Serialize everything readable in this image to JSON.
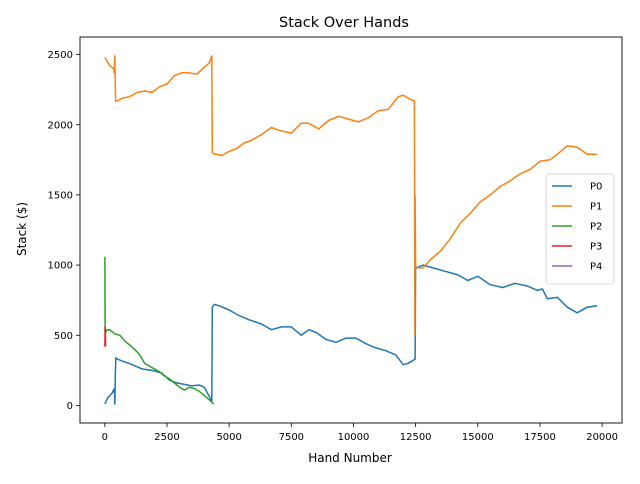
{
  "chart_data": {
    "type": "line",
    "title": "Stack Over Hands",
    "xlabel": "Hand Number",
    "ylabel": "Stack ($)",
    "xlim": [
      -1000,
      20800
    ],
    "ylim": [
      -125,
      2625
    ],
    "xticks": [
      0,
      2500,
      5000,
      7500,
      10000,
      12500,
      15000,
      17500,
      20000
    ],
    "xtick_labels": [
      "0",
      "2500",
      "5000",
      "7500",
      "10000",
      "12500",
      "15000",
      "17500",
      "20000"
    ],
    "yticks": [
      0,
      500,
      1000,
      1500,
      2000,
      2500
    ],
    "ytick_labels": [
      "0",
      "500",
      "1000",
      "1500",
      "2000",
      "2500"
    ],
    "grid": false,
    "legend": "center-right",
    "series": [
      {
        "name": "P0",
        "color": "#1f77b4",
        "x": [
          0,
          100,
          200,
          300,
          380,
          400,
          420,
          440,
          500,
          800,
          1100,
          1500,
          1900,
          2300,
          2600,
          2900,
          3200,
          3500,
          3800,
          4000,
          4300,
          4320,
          4400,
          4600,
          5000,
          5400,
          5800,
          6300,
          6700,
          7100,
          7500,
          7900,
          8200,
          8500,
          8900,
          9300,
          9700,
          10100,
          10500,
          10900,
          11300,
          11700,
          12000,
          12200,
          12480,
          12500,
          12530,
          12800,
          13200,
          13600,
          14200,
          14600,
          15000,
          15500,
          16000,
          16500,
          17000,
          17400,
          17600,
          17800,
          18200,
          18600,
          19000,
          19400,
          19800
        ],
        "y": [
          10,
          50,
          70,
          90,
          120,
          10,
          200,
          340,
          330,
          310,
          290,
          260,
          250,
          230,
          180,
          160,
          150,
          140,
          145,
          130,
          30,
          700,
          720,
          710,
          680,
          640,
          610,
          580,
          540,
          560,
          560,
          500,
          540,
          520,
          470,
          450,
          480,
          480,
          440,
          410,
          390,
          360,
          290,
          300,
          330,
          990,
          980,
          1000,
          980,
          960,
          930,
          890,
          920,
          860,
          840,
          870,
          850,
          820,
          830,
          760,
          770,
          700,
          660,
          700,
          710
        ]
      },
      {
        "name": "P1",
        "color": "#ff7f0e",
        "x": [
          0,
          100,
          200,
          350,
          380,
          400,
          430,
          500,
          700,
          1000,
          1300,
          1600,
          1900,
          2200,
          2500,
          2800,
          3100,
          3400,
          3700,
          4000,
          4200,
          4300,
          4320,
          4400,
          4500,
          4700,
          5000,
          5300,
          5600,
          5900,
          6300,
          6700,
          7000,
          7500,
          7900,
          8200,
          8600,
          9000,
          9400,
          9800,
          10200,
          10600,
          11000,
          11400,
          11800,
          12000,
          12300,
          12450,
          12470,
          12480,
          12500,
          12600,
          12800,
          13100,
          13500,
          13900,
          14300,
          14700,
          15100,
          15500,
          15900,
          16300,
          16700,
          17100,
          17500,
          17900,
          18200,
          18600,
          19000,
          19400,
          19800
        ],
        "y": [
          2480,
          2450,
          2420,
          2400,
          2370,
          2490,
          2170,
          2170,
          2190,
          2200,
          2230,
          2240,
          2230,
          2270,
          2290,
          2350,
          2370,
          2370,
          2360,
          2410,
          2440,
          2490,
          1800,
          1790,
          1790,
          1780,
          1810,
          1830,
          1870,
          1890,
          1930,
          1980,
          1960,
          1940,
          2010,
          2010,
          1970,
          2030,
          2060,
          2040,
          2020,
          2050,
          2100,
          2110,
          2200,
          2210,
          2180,
          2170,
          500,
          1490,
          990,
          980,
          980,
          1040,
          1100,
          1190,
          1300,
          1370,
          1450,
          1500,
          1560,
          1600,
          1650,
          1680,
          1740,
          1750,
          1790,
          1850,
          1840,
          1790,
          1790
        ]
      },
      {
        "name": "P2",
        "color": "#2ca02c",
        "x": [
          0,
          10,
          20,
          40,
          80,
          200,
          400,
          600,
          800,
          1000,
          1200,
          1400,
          1600,
          1800,
          2000,
          2200,
          2400,
          2600,
          2800,
          3000,
          3200,
          3400,
          3600,
          3800,
          4000,
          4200,
          4380
        ],
        "y": [
          1060,
          540,
          530,
          520,
          540,
          540,
          510,
          500,
          460,
          430,
          400,
          360,
          300,
          280,
          260,
          240,
          210,
          190,
          160,
          130,
          110,
          130,
          120,
          100,
          70,
          40,
          10
        ]
      },
      {
        "name": "P3",
        "color": "#d62728",
        "x": [
          0,
          10,
          20,
          30
        ],
        "y": [
          420,
          560,
          500,
          420
        ]
      },
      {
        "name": "P4",
        "color": "#9467bd",
        "x": [],
        "y": []
      }
    ]
  }
}
